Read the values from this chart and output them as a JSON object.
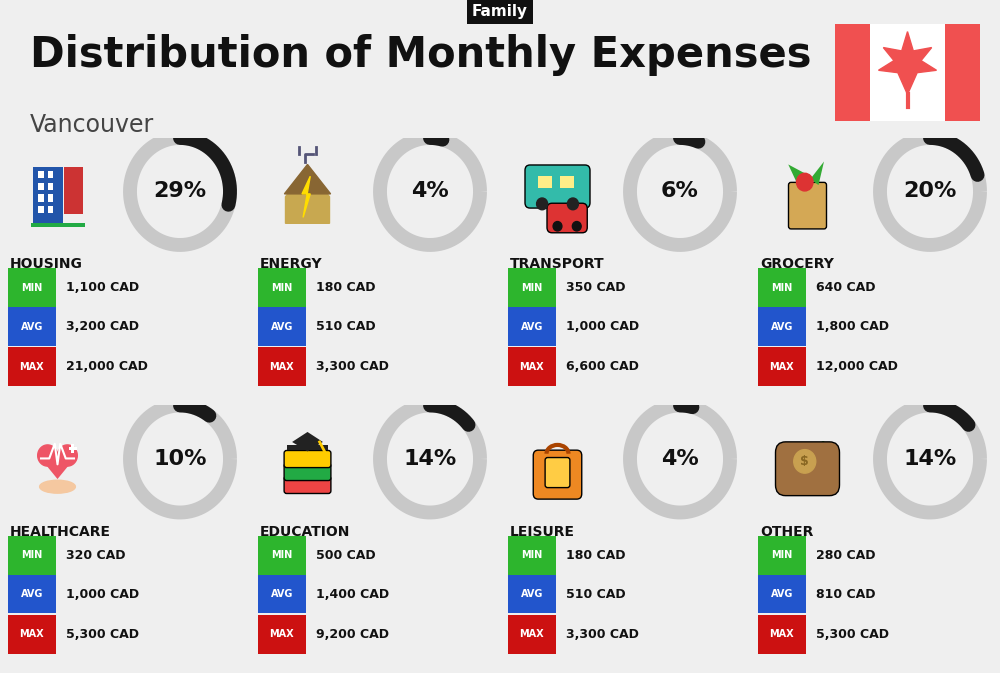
{
  "title": "Distribution of Monthly Expenses",
  "subtitle": "Vancouver",
  "category_label": "Family",
  "bg_color": "#efefef",
  "categories": [
    {
      "name": "HOUSING",
      "pct": 29,
      "min": "1,100 CAD",
      "avg": "3,200 CAD",
      "max": "21,000 CAD",
      "row": 0,
      "col": 0
    },
    {
      "name": "ENERGY",
      "pct": 4,
      "min": "180 CAD",
      "avg": "510 CAD",
      "max": "3,300 CAD",
      "row": 0,
      "col": 1
    },
    {
      "name": "TRANSPORT",
      "pct": 6,
      "min": "350 CAD",
      "avg": "1,000 CAD",
      "max": "6,600 CAD",
      "row": 0,
      "col": 2
    },
    {
      "name": "GROCERY",
      "pct": 20,
      "min": "640 CAD",
      "avg": "1,800 CAD",
      "max": "12,000 CAD",
      "row": 0,
      "col": 3
    },
    {
      "name": "HEALTHCARE",
      "pct": 10,
      "min": "320 CAD",
      "avg": "1,000 CAD",
      "max": "5,300 CAD",
      "row": 1,
      "col": 0
    },
    {
      "name": "EDUCATION",
      "pct": 14,
      "min": "500 CAD",
      "avg": "1,400 CAD",
      "max": "9,200 CAD",
      "row": 1,
      "col": 1
    },
    {
      "name": "LEISURE",
      "pct": 4,
      "min": "180 CAD",
      "avg": "510 CAD",
      "max": "3,300 CAD",
      "row": 1,
      "col": 2
    },
    {
      "name": "OTHER",
      "pct": 14,
      "min": "280 CAD",
      "avg": "810 CAD",
      "max": "5,300 CAD",
      "row": 1,
      "col": 3
    }
  ],
  "min_color": "#2db52d",
  "avg_color": "#2255cc",
  "max_color": "#cc1111",
  "label_color": "#ffffff",
  "text_color": "#111111",
  "donut_dark": "#1a1a1a",
  "donut_gray": "#c8c8c8",
  "flag_red": "#f05050",
  "title_fontsize": 30,
  "subtitle_fontsize": 17,
  "pct_fontsize": 16,
  "name_fontsize": 10,
  "val_fontsize": 9,
  "lbl_fontsize": 7
}
